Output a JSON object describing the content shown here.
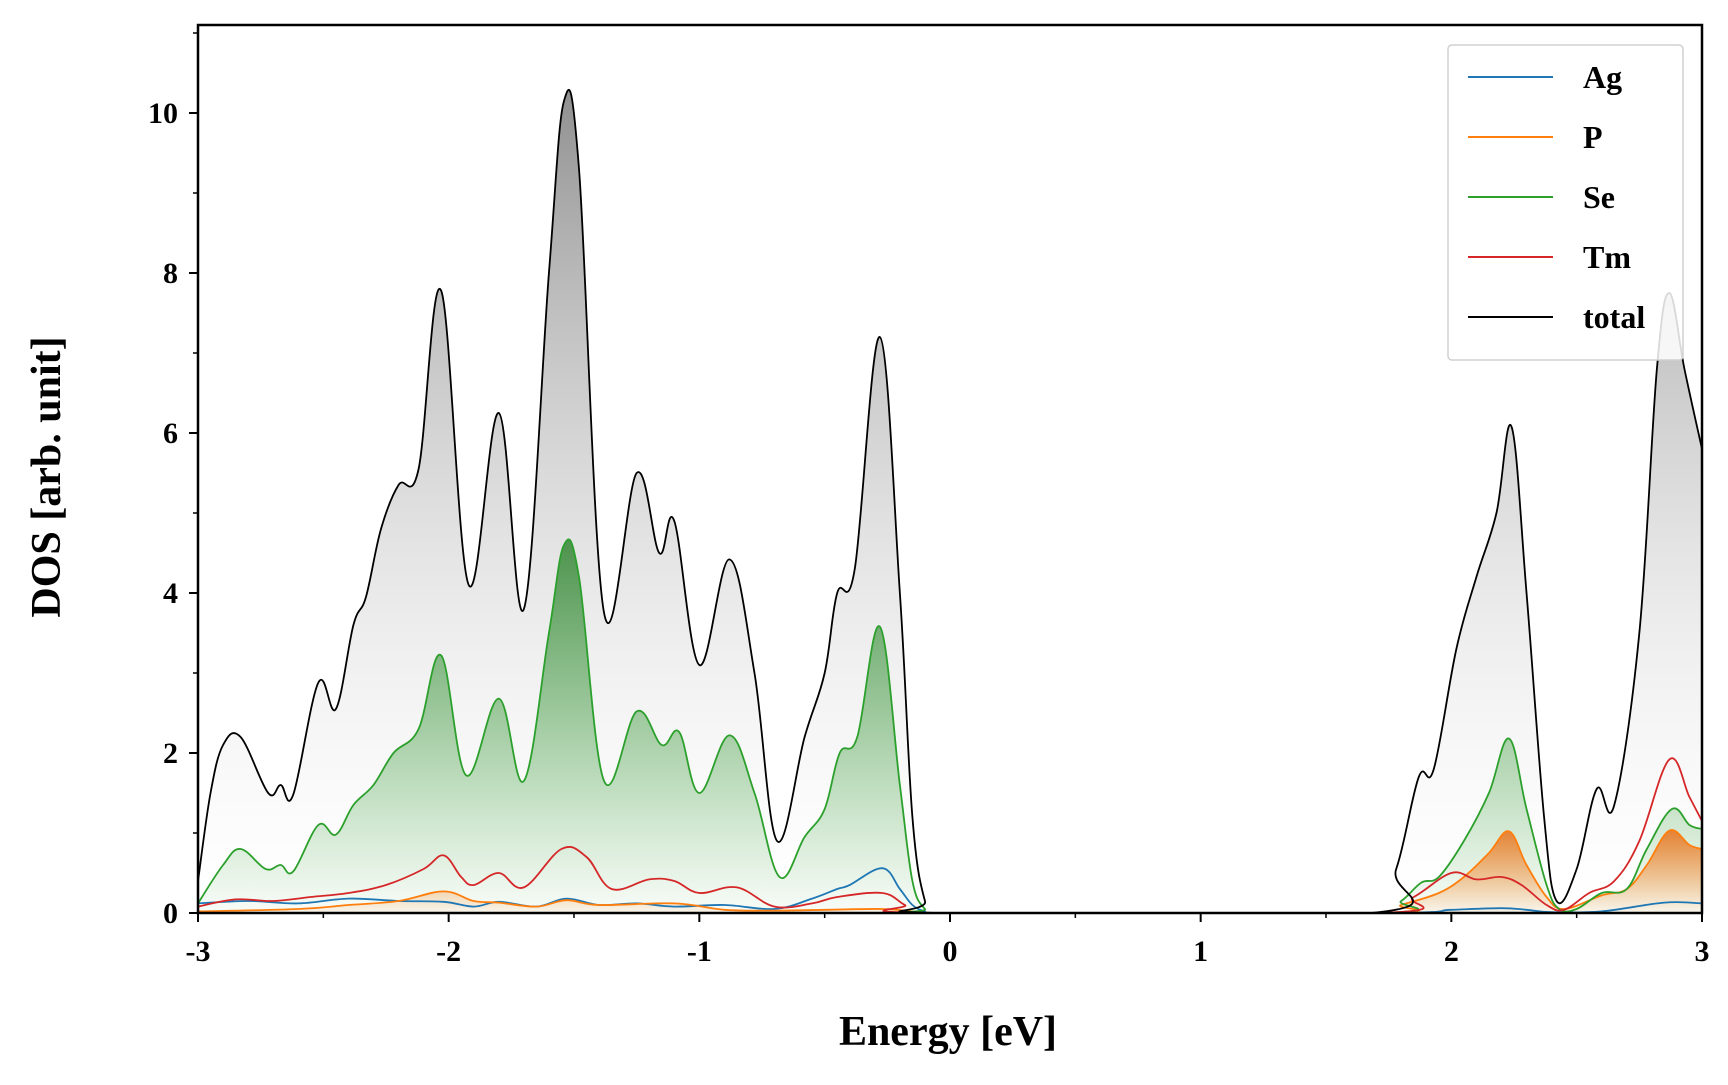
{
  "chart_data": {
    "type": "area",
    "xlabel": "Energy [eV]",
    "ylabel": "DOS [arb. unit]",
    "xlim": [
      -3,
      3
    ],
    "ylim": [
      0,
      11.1
    ],
    "x_ticks": [
      -3,
      -2,
      -1,
      0,
      1,
      2,
      3
    ],
    "x_tick_labels": [
      "-3",
      "-2",
      "-1",
      "0",
      "1",
      "2",
      "3"
    ],
    "y_ticks": [
      0,
      2,
      4,
      6,
      8,
      10
    ],
    "y_tick_labels": [
      "0",
      "2",
      "4",
      "6",
      "8",
      "10"
    ],
    "grid": false,
    "legend": {
      "position": "top-right"
    },
    "colors": {
      "Ag": "#1f77b4",
      "P": "#ff7f0e",
      "Se": "#2ca02c",
      "Tm": "#d62728",
      "total": "#000000"
    },
    "series": [
      {
        "name": "Ag",
        "filled": false,
        "points": [
          [
            -3.0,
            0.12
          ],
          [
            -2.8,
            0.15
          ],
          [
            -2.6,
            0.12
          ],
          [
            -2.4,
            0.18
          ],
          [
            -2.2,
            0.15
          ],
          [
            -2.02,
            0.14
          ],
          [
            -1.9,
            0.08
          ],
          [
            -1.8,
            0.14
          ],
          [
            -1.65,
            0.08
          ],
          [
            -1.53,
            0.18
          ],
          [
            -1.4,
            0.1
          ],
          [
            -1.25,
            0.12
          ],
          [
            -1.1,
            0.08
          ],
          [
            -0.9,
            0.1
          ],
          [
            -0.7,
            0.05
          ],
          [
            -0.55,
            0.18
          ],
          [
            -0.45,
            0.3
          ],
          [
            -0.4,
            0.35
          ],
          [
            -0.27,
            0.56
          ],
          [
            -0.2,
            0.3
          ],
          [
            -0.15,
            0.1
          ],
          [
            -0.1,
            0.02
          ],
          [
            -0.05,
            0.0
          ],
          [
            1.7,
            0.0
          ],
          [
            2.0,
            0.04
          ],
          [
            2.2,
            0.06
          ],
          [
            2.3,
            0.04
          ],
          [
            2.4,
            0.01
          ],
          [
            2.6,
            0.02
          ],
          [
            2.85,
            0.13
          ],
          [
            3.0,
            0.12
          ]
        ]
      },
      {
        "name": "P",
        "filled": true,
        "points": [
          [
            -3.0,
            0.02
          ],
          [
            -2.6,
            0.05
          ],
          [
            -2.4,
            0.1
          ],
          [
            -2.2,
            0.15
          ],
          [
            -2.02,
            0.27
          ],
          [
            -1.9,
            0.15
          ],
          [
            -1.8,
            0.13
          ],
          [
            -1.65,
            0.08
          ],
          [
            -1.53,
            0.16
          ],
          [
            -1.4,
            0.1
          ],
          [
            -1.1,
            0.12
          ],
          [
            -0.9,
            0.04
          ],
          [
            -0.7,
            0.03
          ],
          [
            -0.5,
            0.04
          ],
          [
            -0.27,
            0.05
          ],
          [
            -0.15,
            0.02
          ],
          [
            -0.1,
            0.0
          ],
          [
            1.7,
            0.0
          ],
          [
            1.8,
            0.1
          ],
          [
            1.95,
            0.25
          ],
          [
            2.05,
            0.45
          ],
          [
            2.15,
            0.75
          ],
          [
            2.23,
            1.02
          ],
          [
            2.3,
            0.6
          ],
          [
            2.38,
            0.2
          ],
          [
            2.45,
            0.05
          ],
          [
            2.6,
            0.22
          ],
          [
            2.7,
            0.3
          ],
          [
            2.78,
            0.6
          ],
          [
            2.87,
            1.03
          ],
          [
            2.95,
            0.85
          ],
          [
            3.0,
            0.8
          ]
        ]
      },
      {
        "name": "Se",
        "filled": true,
        "points": [
          [
            -3.0,
            0.12
          ],
          [
            -2.9,
            0.6
          ],
          [
            -2.83,
            0.8
          ],
          [
            -2.73,
            0.55
          ],
          [
            -2.67,
            0.6
          ],
          [
            -2.62,
            0.52
          ],
          [
            -2.52,
            1.1
          ],
          [
            -2.45,
            0.98
          ],
          [
            -2.38,
            1.35
          ],
          [
            -2.3,
            1.6
          ],
          [
            -2.22,
            2.0
          ],
          [
            -2.12,
            2.3
          ],
          [
            -2.03,
            3.22
          ],
          [
            -1.93,
            1.72
          ],
          [
            -1.8,
            2.68
          ],
          [
            -1.7,
            1.65
          ],
          [
            -1.6,
            3.5
          ],
          [
            -1.54,
            4.6
          ],
          [
            -1.48,
            4.2
          ],
          [
            -1.38,
            1.65
          ],
          [
            -1.25,
            2.52
          ],
          [
            -1.15,
            2.1
          ],
          [
            -1.08,
            2.26
          ],
          [
            -1.0,
            1.5
          ],
          [
            -0.88,
            2.22
          ],
          [
            -0.78,
            1.5
          ],
          [
            -0.68,
            0.45
          ],
          [
            -0.58,
            0.95
          ],
          [
            -0.5,
            1.3
          ],
          [
            -0.44,
            2.0
          ],
          [
            -0.37,
            2.2
          ],
          [
            -0.28,
            3.58
          ],
          [
            -0.2,
            1.6
          ],
          [
            -0.15,
            0.4
          ],
          [
            -0.1,
            0.05
          ],
          [
            -0.05,
            0.0
          ],
          [
            1.7,
            0.0
          ],
          [
            1.8,
            0.15
          ],
          [
            1.88,
            0.38
          ],
          [
            1.95,
            0.45
          ],
          [
            2.05,
            0.9
          ],
          [
            2.15,
            1.5
          ],
          [
            2.23,
            2.18
          ],
          [
            2.3,
            1.3
          ],
          [
            2.38,
            0.35
          ],
          [
            2.43,
            0.05
          ],
          [
            2.5,
            0.05
          ],
          [
            2.6,
            0.25
          ],
          [
            2.7,
            0.3
          ],
          [
            2.78,
            0.8
          ],
          [
            2.88,
            1.3
          ],
          [
            2.95,
            1.1
          ],
          [
            3.0,
            1.05
          ]
        ]
      },
      {
        "name": "Tm",
        "filled": false,
        "points": [
          [
            -3.0,
            0.08
          ],
          [
            -2.85,
            0.17
          ],
          [
            -2.7,
            0.15
          ],
          [
            -2.55,
            0.2
          ],
          [
            -2.4,
            0.25
          ],
          [
            -2.25,
            0.35
          ],
          [
            -2.1,
            0.55
          ],
          [
            -2.02,
            0.72
          ],
          [
            -1.95,
            0.45
          ],
          [
            -1.9,
            0.35
          ],
          [
            -1.8,
            0.5
          ],
          [
            -1.7,
            0.32
          ],
          [
            -1.55,
            0.8
          ],
          [
            -1.45,
            0.7
          ],
          [
            -1.35,
            0.3
          ],
          [
            -1.2,
            0.42
          ],
          [
            -1.1,
            0.4
          ],
          [
            -1.0,
            0.25
          ],
          [
            -0.85,
            0.32
          ],
          [
            -0.7,
            0.08
          ],
          [
            -0.55,
            0.12
          ],
          [
            -0.45,
            0.2
          ],
          [
            -0.27,
            0.25
          ],
          [
            -0.18,
            0.1
          ],
          [
            -0.1,
            0.0
          ],
          [
            1.7,
            0.0
          ],
          [
            1.85,
            0.2
          ],
          [
            2.0,
            0.5
          ],
          [
            2.1,
            0.42
          ],
          [
            2.2,
            0.45
          ],
          [
            2.28,
            0.35
          ],
          [
            2.38,
            0.1
          ],
          [
            2.45,
            0.04
          ],
          [
            2.55,
            0.25
          ],
          [
            2.65,
            0.4
          ],
          [
            2.75,
            0.9
          ],
          [
            2.87,
            1.92
          ],
          [
            2.95,
            1.45
          ],
          [
            3.0,
            1.15
          ]
        ]
      },
      {
        "name": "total",
        "filled": true,
        "points": [
          [
            -3.0,
            0.4
          ],
          [
            -2.95,
            1.5
          ],
          [
            -2.9,
            2.1
          ],
          [
            -2.83,
            2.2
          ],
          [
            -2.72,
            1.5
          ],
          [
            -2.67,
            1.6
          ],
          [
            -2.62,
            1.48
          ],
          [
            -2.52,
            2.88
          ],
          [
            -2.45,
            2.55
          ],
          [
            -2.38,
            3.6
          ],
          [
            -2.33,
            3.95
          ],
          [
            -2.27,
            4.8
          ],
          [
            -2.2,
            5.35
          ],
          [
            -2.12,
            5.55
          ],
          [
            -2.03,
            7.78
          ],
          [
            -1.92,
            4.1
          ],
          [
            -1.8,
            6.25
          ],
          [
            -1.7,
            3.8
          ],
          [
            -1.6,
            8.0
          ],
          [
            -1.54,
            10.15
          ],
          [
            -1.48,
            9.3
          ],
          [
            -1.38,
            3.75
          ],
          [
            -1.25,
            5.5
          ],
          [
            -1.16,
            4.5
          ],
          [
            -1.1,
            4.9
          ],
          [
            -1.0,
            3.1
          ],
          [
            -0.88,
            4.42
          ],
          [
            -0.78,
            3.0
          ],
          [
            -0.69,
            0.9
          ],
          [
            -0.58,
            2.2
          ],
          [
            -0.5,
            3.0
          ],
          [
            -0.45,
            4.0
          ],
          [
            -0.38,
            4.3
          ],
          [
            -0.28,
            7.2
          ],
          [
            -0.2,
            4.0
          ],
          [
            -0.15,
            1.2
          ],
          [
            -0.1,
            0.15
          ],
          [
            -0.05,
            0.0
          ],
          [
            1.68,
            0.0
          ],
          [
            1.78,
            0.55
          ],
          [
            1.87,
            1.7
          ],
          [
            1.93,
            1.8
          ],
          [
            2.02,
            3.3
          ],
          [
            2.1,
            4.2
          ],
          [
            2.18,
            5.0
          ],
          [
            2.24,
            6.08
          ],
          [
            2.3,
            4.0
          ],
          [
            2.37,
            1.2
          ],
          [
            2.42,
            0.15
          ],
          [
            2.5,
            0.55
          ],
          [
            2.58,
            1.55
          ],
          [
            2.65,
            1.35
          ],
          [
            2.75,
            3.5
          ],
          [
            2.82,
            6.8
          ],
          [
            2.87,
            7.75
          ],
          [
            2.93,
            6.8
          ],
          [
            3.0,
            5.8
          ]
        ]
      }
    ]
  }
}
